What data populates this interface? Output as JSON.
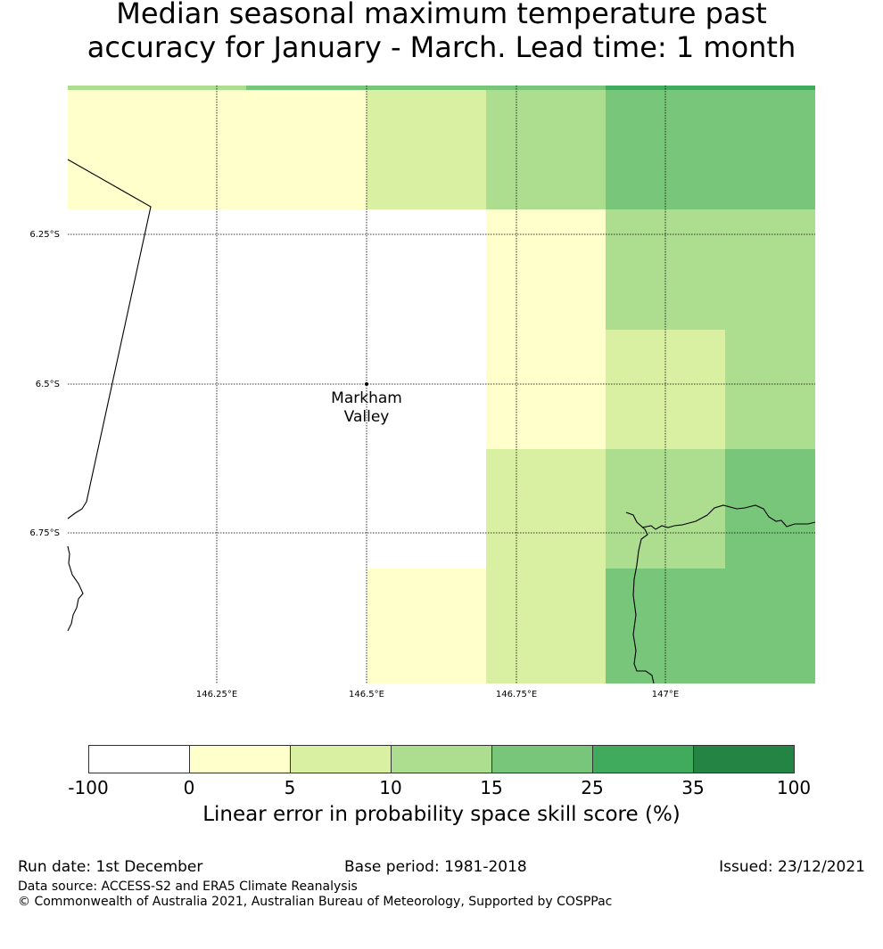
{
  "title_line1": "Median seasonal maximum temperature past",
  "title_line2": "accuracy for January - March. Lead time: 1 month",
  "map": {
    "lat_labels": [
      "6.25°S",
      "6.5°S",
      "6.75°S"
    ],
    "lon_labels": [
      "146.25°E",
      "146.5°E",
      "146.75°E",
      "147°E"
    ],
    "place_label_line1": "Markham",
    "place_label_line2": "Valley",
    "category_colors": [
      "#ffffff",
      "#ffffcc",
      "#d9f0a3",
      "#addd8e",
      "#78c679",
      "#41ab5d",
      "#238443"
    ]
  },
  "colorbar": {
    "ticks": [
      "-100",
      "0",
      "5",
      "10",
      "15",
      "25",
      "35",
      "100"
    ],
    "label": "Linear error in probability space skill score (%)"
  },
  "footer": {
    "run_date": "Run date: 1st December",
    "base_period": "Base period: 1981-2018",
    "issued": "Issued: 23/12/2021",
    "data_source": "Data source: ACCESS-S2 and ERA5 Climate Reanalysis",
    "copyright": "© Commonwealth of Australia 2021, Australian Bureau of Meteorology, Supported by COSPPac"
  }
}
